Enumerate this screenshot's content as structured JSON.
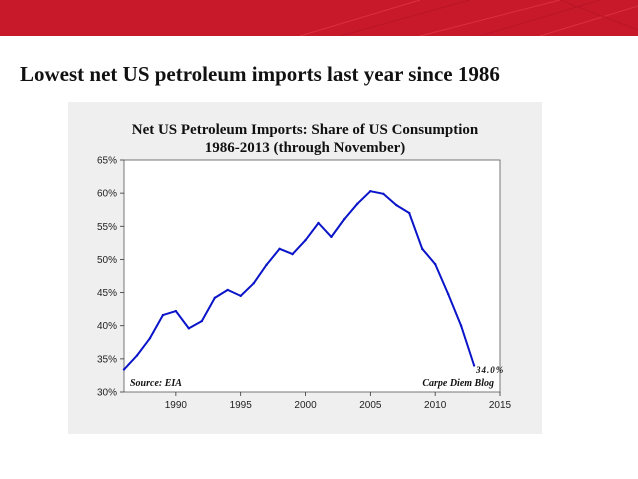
{
  "slide": {
    "title": "Lowest net US petroleum imports last year since 1986",
    "banner_color": "#c8192b"
  },
  "chart_data": {
    "type": "line",
    "title": "Net US Petroleum Imports: Share of US Consumption",
    "subtitle": "1986-2013 (through November)",
    "xlabel": "",
    "ylabel": "",
    "x": [
      1986,
      1987,
      1988,
      1989,
      1990,
      1991,
      1992,
      1993,
      1994,
      1995,
      1996,
      1997,
      1998,
      1999,
      2000,
      2001,
      2002,
      2003,
      2004,
      2005,
      2006,
      2007,
      2008,
      2009,
      2010,
      2011,
      2012,
      2013
    ],
    "series": [
      {
        "name": "",
        "color": "#0a14c8",
        "values": [
          33.4,
          35.5,
          38.1,
          41.6,
          42.2,
          39.6,
          40.7,
          44.2,
          45.4,
          44.5,
          46.4,
          49.2,
          51.6,
          50.8,
          52.9,
          55.5,
          53.4,
          56.1,
          58.4,
          60.3,
          59.9,
          58.2,
          57.0,
          51.6,
          49.3,
          44.8,
          40.0,
          34.0
        ]
      }
    ],
    "xlim": [
      1986,
      2015
    ],
    "ylim": [
      30,
      65
    ],
    "x_ticks": [
      1990,
      1995,
      2000,
      2005,
      2010,
      2015
    ],
    "y_ticks": [
      30,
      35,
      40,
      45,
      50,
      55,
      60,
      65
    ],
    "y_tick_labels": [
      "30%",
      "35%",
      "40%",
      "45%",
      "50%",
      "55%",
      "60%",
      "65%"
    ],
    "grid": false,
    "legend": "none",
    "annotations": {
      "source": "Source: EIA",
      "credit": "Carpe Diem Blog",
      "last_value": "34.0%"
    }
  }
}
